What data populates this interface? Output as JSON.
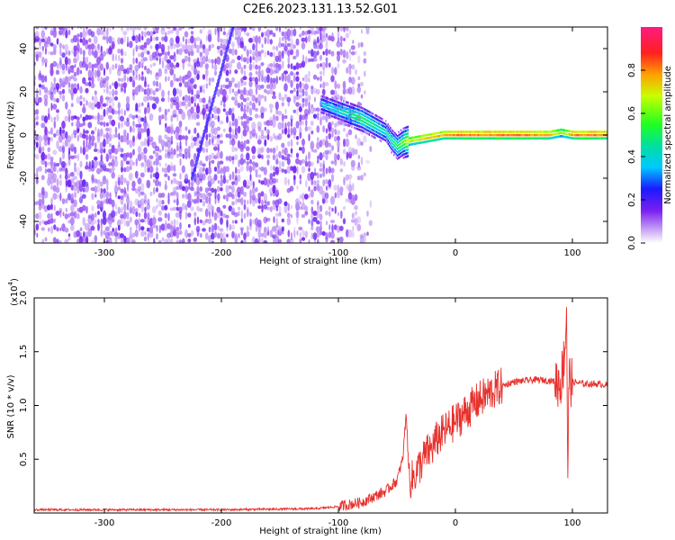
{
  "title": "C2E6.2023.131.13.52.G01",
  "colors": {
    "snr_line": "#e8302c",
    "spectrogram_noise": "#7b1ff0",
    "frame": "#000000"
  },
  "chart_data": [
    {
      "type": "heatmap",
      "xlabel": "Height of straight line (km)",
      "ylabel": "Frequency (Hz)",
      "xlim": [
        -360,
        130
      ],
      "ylim": [
        -50,
        50
      ],
      "x_ticks": [
        -300,
        -200,
        -100,
        0,
        100
      ],
      "y_ticks": [
        -40,
        -20,
        0,
        20,
        40
      ],
      "colorbar": {
        "label": "Normalized spectral amplitude",
        "range": [
          0.0,
          1.0
        ],
        "ticks": [
          "0.0",
          "0.2",
          "0.4",
          "0.6",
          "0.8"
        ],
        "tick_values": [
          0.0,
          0.2,
          0.4,
          0.6,
          0.8
        ]
      },
      "signal_trace": {
        "x": [
          -115,
          -100,
          -90,
          -80,
          -70,
          -60,
          -55,
          -50,
          -45,
          -40,
          -30,
          -20,
          -10,
          0,
          20,
          40,
          60,
          80,
          90,
          100,
          130
        ],
        "y": [
          15,
          12,
          10,
          8,
          5,
          2,
          -2,
          -5,
          -3,
          -2,
          -1,
          0,
          1,
          1,
          1,
          1,
          1,
          1,
          2,
          1,
          1
        ],
        "amplitude": [
          0.45,
          0.5,
          0.55,
          0.6,
          0.55,
          0.5,
          0.55,
          0.6,
          0.65,
          0.8,
          0.85,
          0.9,
          0.9,
          0.95,
          0.95,
          0.95,
          0.95,
          0.9,
          0.75,
          0.95,
          0.95
        ]
      },
      "noise_region_x": [
        -360,
        -110
      ]
    },
    {
      "type": "line",
      "xlabel": "Height of straight line (km)",
      "ylabel": "SNR (10 * v/v)",
      "scale_label": "(x10",
      "scale_exponent": "4",
      "scale_suffix": ")",
      "xlim": [
        -360,
        130
      ],
      "ylim": [
        0,
        2.0
      ],
      "x_ticks": [
        -300,
        -200,
        -100,
        0,
        100
      ],
      "y_ticks": [
        0.5,
        1.0,
        1.5,
        2.0
      ],
      "y_tick_labels": [
        "0.5",
        "1.0",
        "1.5",
        "2.0"
      ],
      "series": [
        {
          "values_note_free": true,
          "x": [
            -360,
            -300,
            -200,
            -120,
            -100,
            -80,
            -60,
            -50,
            -45,
            -42,
            -40,
            -38,
            -35,
            -30,
            -25,
            -20,
            -15,
            -10,
            -5,
            0,
            5,
            10,
            15,
            20,
            30,
            40,
            50,
            60,
            70,
            80,
            90,
            92,
            94,
            95,
            96,
            97,
            100,
            110,
            120,
            130
          ],
          "y": [
            0.03,
            0.03,
            0.03,
            0.04,
            0.06,
            0.1,
            0.2,
            0.3,
            0.5,
            0.95,
            0.4,
            0.3,
            0.35,
            0.45,
            0.55,
            0.6,
            0.7,
            0.75,
            0.8,
            0.85,
            0.9,
            0.95,
            1.0,
            1.05,
            1.12,
            1.18,
            1.22,
            1.23,
            1.24,
            1.23,
            1.22,
            1.35,
            1.6,
            1.95,
            0.28,
            1.25,
            1.22,
            1.2,
            1.2,
            1.19
          ]
        }
      ]
    }
  ]
}
